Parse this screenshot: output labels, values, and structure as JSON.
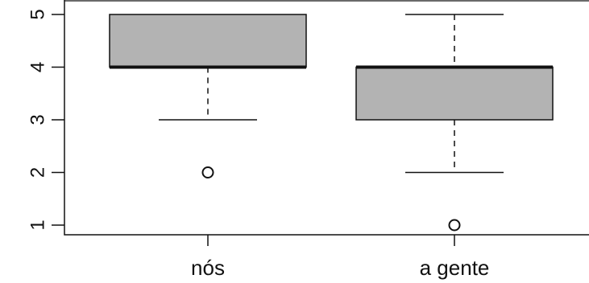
{
  "chart_data": {
    "type": "boxplot",
    "categories": [
      "nós",
      "a gente"
    ],
    "boxes": [
      {
        "q1": 4,
        "median": 4,
        "q3": 5,
        "whisker_low": 3,
        "whisker_high": 5,
        "outliers": [
          2
        ]
      },
      {
        "q1": 3,
        "median": 4,
        "q3": 4,
        "whisker_low": 2,
        "whisker_high": 5,
        "outliers": [
          1
        ]
      }
    ],
    "y_ticks": [
      1,
      2,
      3,
      4,
      5
    ],
    "ylim": [
      1,
      5
    ],
    "title": "",
    "xlabel": "",
    "ylabel": "",
    "box_fill": "#b3b3b3",
    "line_color": "#111111",
    "grid": false
  }
}
